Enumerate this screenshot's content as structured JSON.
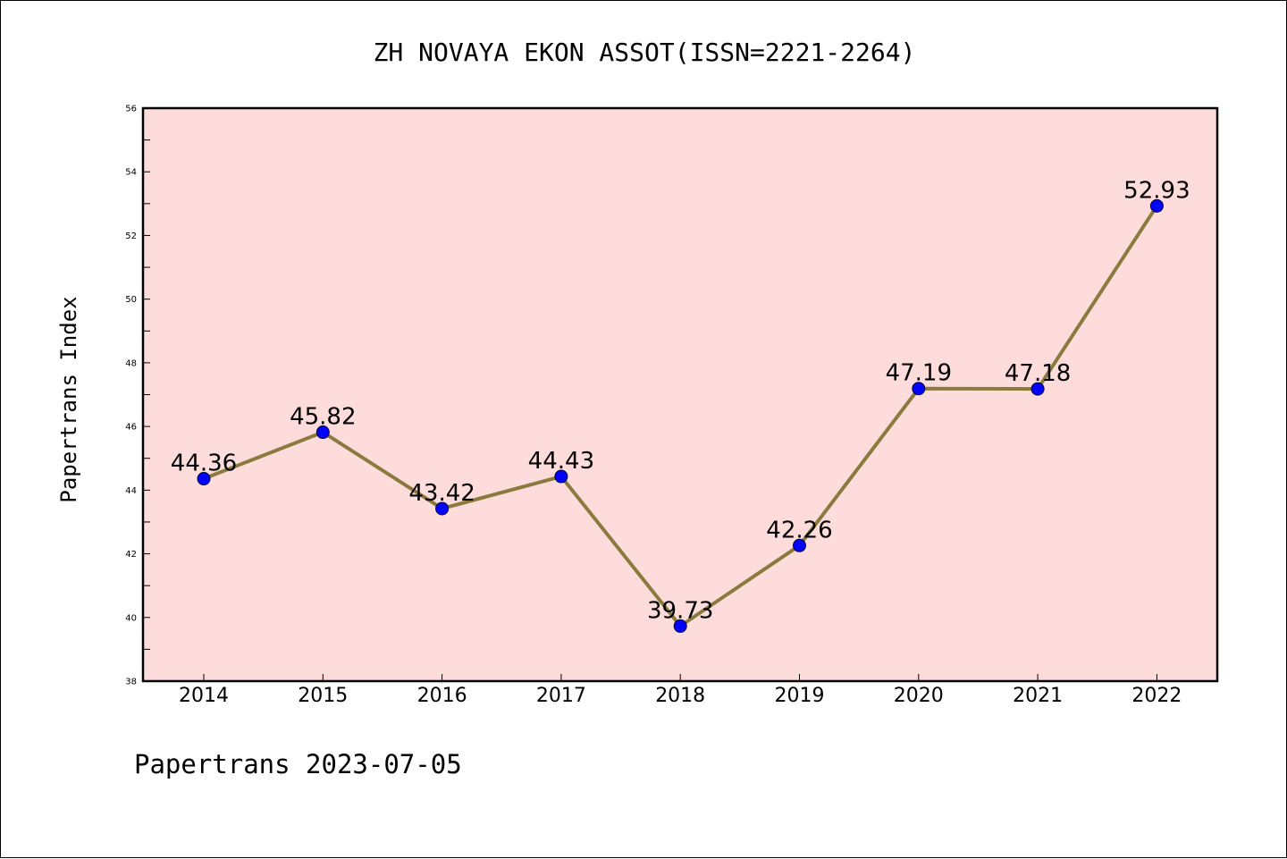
{
  "chart_data": {
    "type": "line",
    "title": "ZH NOVAYA EKON ASSOT(ISSN=2221-2264)",
    "ylabel": "Papertrans Index",
    "xlabel": "",
    "categories": [
      "2014",
      "2015",
      "2016",
      "2017",
      "2018",
      "2019",
      "2020",
      "2021",
      "2022"
    ],
    "series": [
      {
        "values": [
          44.36,
          45.82,
          43.42,
          44.43,
          39.73,
          42.26,
          47.19,
          47.18,
          52.93
        ],
        "labels": [
          "44.36",
          "45.82",
          "43.42",
          "44.43",
          "39.73",
          "42.26",
          "47.19",
          "47.18",
          "52.93"
        ],
        "line_color": "#8b7a3e",
        "marker_color": "#0000ff"
      }
    ],
    "ylim": [
      38,
      56
    ],
    "yticks": [
      "38",
      "40",
      "42",
      "44",
      "46",
      "48",
      "50",
      "52",
      "54",
      "56"
    ],
    "plot_background": "#ffdcdc",
    "grid": false,
    "legend": "none",
    "footer": "Papertrans 2023-07-05"
  }
}
